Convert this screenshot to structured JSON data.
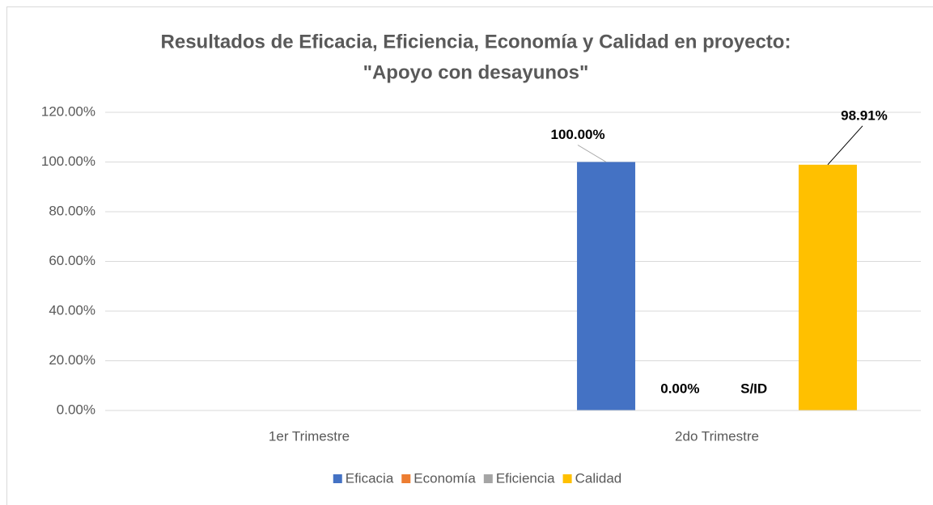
{
  "chart_data": {
    "type": "bar",
    "title": [
      "Resultados de Eficacia, Eficiencia, Economía y Calidad en proyecto:",
      "\"Apoyo con desayunos\""
    ],
    "categories": [
      "1er Trimestre",
      "2do Trimestre"
    ],
    "series": [
      {
        "name": "Eficacia",
        "color": "#4472c4",
        "values": [
          null,
          100
        ],
        "value_labels": [
          null,
          "100.00%"
        ]
      },
      {
        "name": "Economía",
        "color": "#ed7d31",
        "values": [
          null,
          0
        ],
        "value_labels": [
          null,
          "0.00%"
        ]
      },
      {
        "name": "Eficiencia",
        "color": "#a5a5a5",
        "values": [
          null,
          null
        ],
        "value_labels": [
          null,
          "S/ID"
        ]
      },
      {
        "name": "Calidad",
        "color": "#ffc000",
        "values": [
          null,
          98.91
        ],
        "value_labels": [
          null,
          "98.91%"
        ]
      }
    ],
    "ylim": [
      0,
      120
    ],
    "yticks": [
      {
        "value": 0,
        "label": "0.00%"
      },
      {
        "value": 20,
        "label": "20.00%"
      },
      {
        "value": 40,
        "label": "40.00%"
      },
      {
        "value": 60,
        "label": "60.00%"
      },
      {
        "value": 80,
        "label": "80.00%"
      },
      {
        "value": 100,
        "label": "100.00%"
      },
      {
        "value": 120,
        "label": "120.00%"
      }
    ],
    "grid": true,
    "legend": "bottom"
  }
}
